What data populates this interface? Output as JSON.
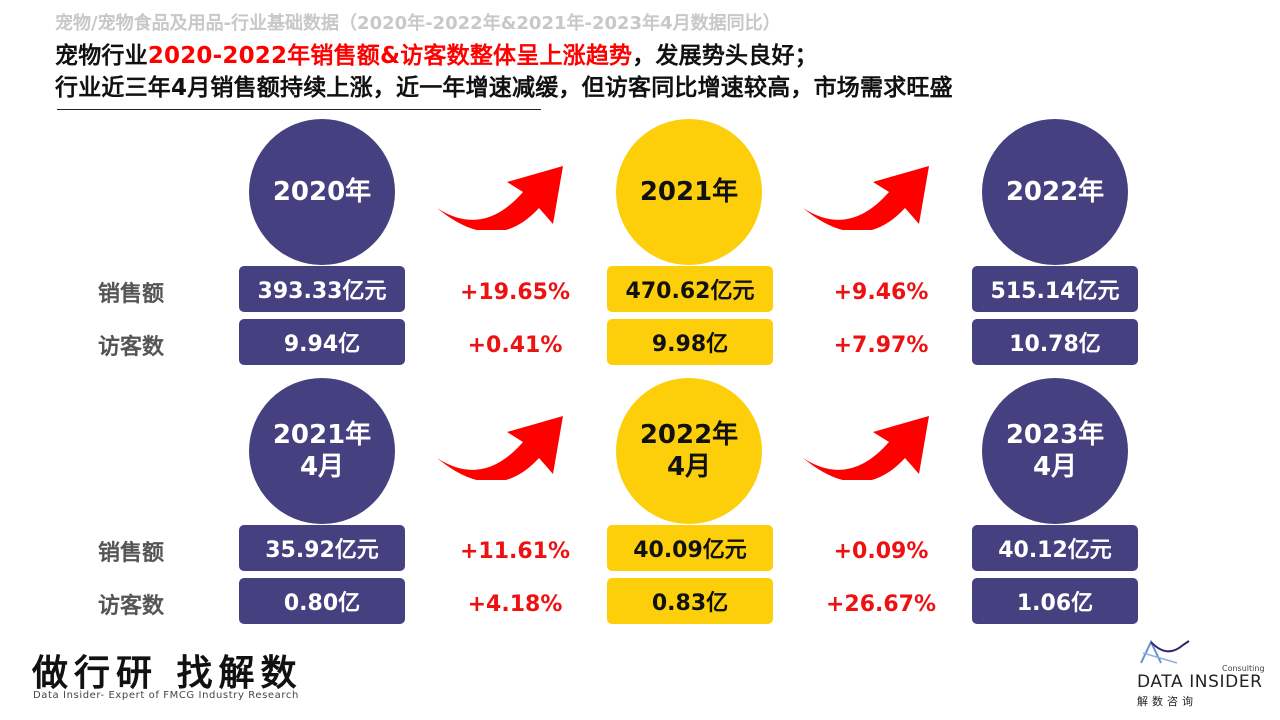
{
  "header": {
    "subtitle": "宠物/宠物食品及用品-行业基础数据（2020年-2022年&2021年-2023年4月数据同比）",
    "line1_prefix": "宠物行业",
    "line1_highlight": "2020-2022年销售额&访客数整体呈上涨趋势",
    "line1_suffix": "，发展势头良好；",
    "line2": "行业近三年4月销售额持续上涨，近一年增速减缓，但访客同比增速较高，市场需求旺盛"
  },
  "row_labels": {
    "sales": "销售额",
    "visitors": "访客数"
  },
  "annual": {
    "periods": [
      {
        "label": "2020年",
        "sales": "393.33亿元",
        "visitors": "9.94亿",
        "style": "navy"
      },
      {
        "label": "2021年",
        "sales": "470.62亿元",
        "visitors": "9.98亿",
        "style": "gold"
      },
      {
        "label": "2022年",
        "sales": "515.14亿元",
        "visitors": "10.78亿",
        "style": "navy"
      }
    ],
    "growth": [
      {
        "sales": "+19.65%",
        "visitors": "+0.41%"
      },
      {
        "sales": "+9.46%",
        "visitors": "+7.97%"
      }
    ]
  },
  "april": {
    "periods": [
      {
        "label": "2021年\n4月",
        "sales": "35.92亿元",
        "visitors": "0.80亿",
        "style": "navy"
      },
      {
        "label": "2022年\n4月",
        "sales": "40.09亿元",
        "visitors": "0.83亿",
        "style": "gold"
      },
      {
        "label": "2023年\n4月",
        "sales": "40.12亿元",
        "visitors": "1.06亿",
        "style": "navy"
      }
    ],
    "growth": [
      {
        "sales": "+11.61%",
        "visitors": "+4.18%"
      },
      {
        "sales": "+0.09%",
        "visitors": "+26.67%"
      }
    ]
  },
  "footer": {
    "slogan": "做行研 找解数",
    "slogan_en": "Data Insider- Expert of FMCG Industry Research",
    "logo_consulting": "Consulting",
    "logo_name": "DATA INSIDER",
    "logo_cn": "解数咨询"
  },
  "colors": {
    "navy": "#45407f",
    "gold": "#fccf0a",
    "red": "#ff0000",
    "growth_red": "#ee1111",
    "arrow_red": "#ff0000"
  },
  "icons": {
    "growth_arrow": "curved-up-right-arrow-icon",
    "logo_mark": "triangle-wave-logo-icon"
  }
}
